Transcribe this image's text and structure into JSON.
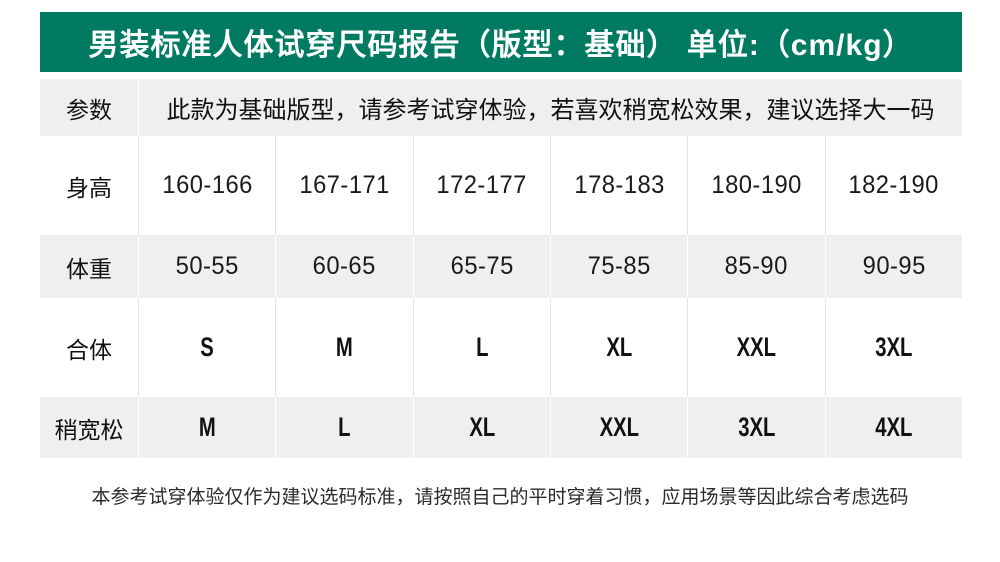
{
  "header": {
    "title": "男装标准人体试穿尺码报告（版型：基础） 单位:（cm/kg）",
    "bg_color": "#007b62",
    "text_color": "#ffffff"
  },
  "table": {
    "alt_row_bg": "#efefef",
    "divider_color": "#e4e4e4",
    "rows": [
      {
        "label": "参数",
        "note": "此款为基础版型，请参考试穿体验，若喜欢稍宽松效果，建议选择大一码"
      },
      {
        "label": "身高",
        "values": [
          "160-166",
          "167-171",
          "172-177",
          "178-183",
          "180-190",
          "182-190"
        ]
      },
      {
        "label": "体重",
        "values": [
          "50-55",
          "60-65",
          "65-75",
          "75-85",
          "85-90",
          "90-95"
        ]
      },
      {
        "label": "合体",
        "values": [
          "S",
          "M",
          "L",
          "XL",
          "XXL",
          "3XL"
        ]
      },
      {
        "label": "稍宽松",
        "values": [
          "M",
          "L",
          "XL",
          "XXL",
          "3XL",
          "4XL"
        ]
      }
    ]
  },
  "footnote": "本参考试穿体验仅作为建议选码标准，请按照自己的平时穿着习惯，应用场景等因此综合考虑选码"
}
